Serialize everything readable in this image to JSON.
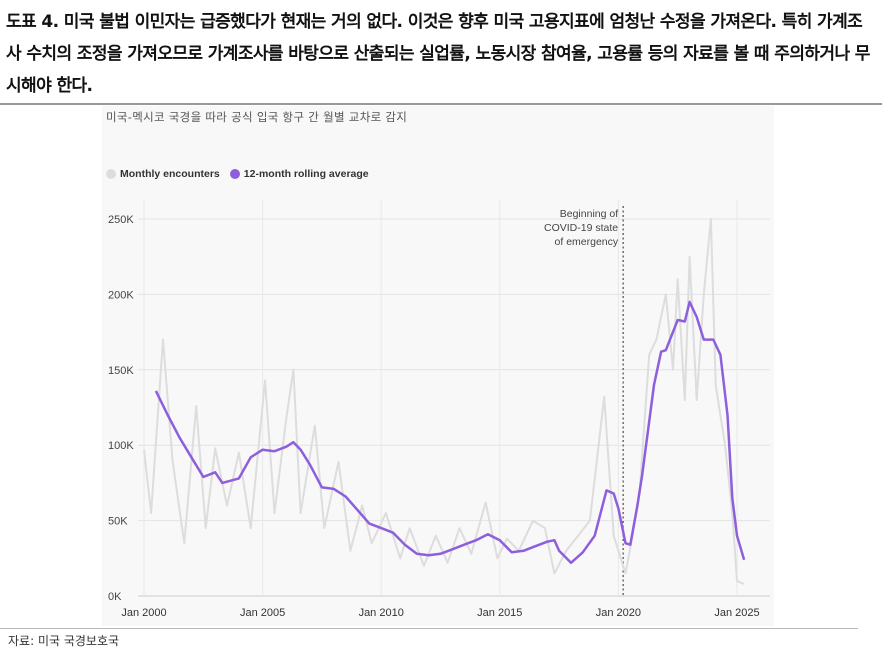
{
  "caption": "도표 4. 미국 불법 이민자는 급증했다가 현재는 거의 없다. 이것은 향후 미국 고용지표에 엄청난 수정을 가져온다. 특히 가계조사 수치의 조정을 가져오므로 가계조사를 바탕으로 산출되는 실업률, 노동시장 참여율, 고용률 등의 자료를 볼 때 주의하거나 무시해야 한다.",
  "source": "자료: 미국 국경보호국",
  "chart_data": {
    "type": "line",
    "title": "",
    "subtitle": "미국-멕시코 국경을 따라 공식 입국 항구 간 월별 교차로 감지",
    "xlabel": "",
    "ylabel": "",
    "xlim": [
      2000,
      2025.6
    ],
    "ylim": [
      0,
      250000
    ],
    "grid": true,
    "legend_placement": "top-left",
    "x_ticks": [
      2000,
      2005,
      2010,
      2015,
      2020,
      2025
    ],
    "x_tick_labels": [
      "Jan 2000",
      "Jan 2005",
      "Jan 2010",
      "Jan 2015",
      "Jan 2020",
      "Jan 2025"
    ],
    "y_ticks": [
      0,
      50000,
      100000,
      150000,
      200000,
      250000
    ],
    "y_tick_labels": [
      "0K",
      "50K",
      "100K",
      "150K",
      "200K",
      "250K"
    ],
    "annotation": {
      "x": 2020.2,
      "lines": [
        "Beginning of",
        "COVID-19 state",
        "of emergency"
      ]
    },
    "series": [
      {
        "name": "Monthly encounters",
        "color": "#dddddd",
        "x": [
          2000.0,
          2000.3,
          2000.8,
          2001.2,
          2001.7,
          2002.2,
          2002.6,
          2003.0,
          2003.5,
          2004.0,
          2004.5,
          2005.1,
          2005.5,
          2006.0,
          2006.3,
          2006.6,
          2007.2,
          2007.6,
          2008.2,
          2008.7,
          2009.2,
          2009.6,
          2010.2,
          2010.8,
          2011.2,
          2011.8,
          2012.3,
          2012.8,
          2013.3,
          2013.8,
          2014.4,
          2014.9,
          2015.3,
          2015.8,
          2016.4,
          2016.9,
          2017.3,
          2017.8,
          2018.3,
          2018.8,
          2019.4,
          2019.8,
          2020.3,
          2020.6,
          2020.9,
          2021.3,
          2021.6,
          2022.0,
          2022.3,
          2022.5,
          2022.8,
          2023.0,
          2023.3,
          2023.6,
          2023.9,
          2024.1,
          2024.5,
          2024.8,
          2025.0,
          2025.3
        ],
        "y": [
          97000,
          55000,
          170000,
          90000,
          35000,
          126000,
          45000,
          98000,
          60000,
          95000,
          45000,
          143000,
          55000,
          118000,
          150000,
          55000,
          113000,
          45000,
          89000,
          30000,
          60000,
          35000,
          55000,
          25000,
          45000,
          20000,
          40000,
          22000,
          45000,
          28000,
          62000,
          25000,
          38000,
          30000,
          50000,
          45000,
          15000,
          30000,
          40000,
          50000,
          132000,
          40000,
          15000,
          40000,
          70000,
          160000,
          170000,
          200000,
          150000,
          210000,
          130000,
          225000,
          130000,
          200000,
          250000,
          140000,
          100000,
          55000,
          10000,
          8000
        ]
      },
      {
        "name": "12-month rolling average",
        "color": "#8e5fdc",
        "x": [
          2000.5,
          2001.0,
          2001.5,
          2002.0,
          2002.5,
          2003.0,
          2003.3,
          2004.0,
          2004.5,
          2005.0,
          2005.5,
          2006.0,
          2006.3,
          2006.6,
          2007.0,
          2007.5,
          2008.0,
          2008.5,
          2009.0,
          2009.5,
          2010.0,
          2010.5,
          2011.0,
          2011.5,
          2012.0,
          2012.5,
          2013.0,
          2013.5,
          2014.0,
          2014.5,
          2015.0,
          2015.5,
          2016.0,
          2016.5,
          2017.0,
          2017.3,
          2017.5,
          2018.0,
          2018.5,
          2019.0,
          2019.5,
          2019.8,
          2020.0,
          2020.3,
          2020.5,
          2020.8,
          2021.0,
          2021.5,
          2021.8,
          2022.0,
          2022.5,
          2022.8,
          2023.0,
          2023.3,
          2023.6,
          2024.0,
          2024.3,
          2024.6,
          2024.8,
          2025.0,
          2025.3
        ],
        "y": [
          136000,
          120000,
          105000,
          92000,
          79000,
          82000,
          75000,
          78000,
          92000,
          97000,
          96000,
          99000,
          102000,
          97000,
          87000,
          72000,
          71000,
          66000,
          57000,
          48000,
          45000,
          42000,
          34000,
          28000,
          27000,
          28000,
          31000,
          34000,
          37000,
          41000,
          37000,
          29000,
          30000,
          33000,
          36000,
          37000,
          30000,
          22000,
          29000,
          40000,
          70000,
          68000,
          58000,
          35000,
          34000,
          60000,
          80000,
          140000,
          162000,
          163000,
          183000,
          182000,
          195000,
          185000,
          170000,
          170000,
          160000,
          120000,
          65000,
          40000,
          24000
        ]
      }
    ]
  }
}
